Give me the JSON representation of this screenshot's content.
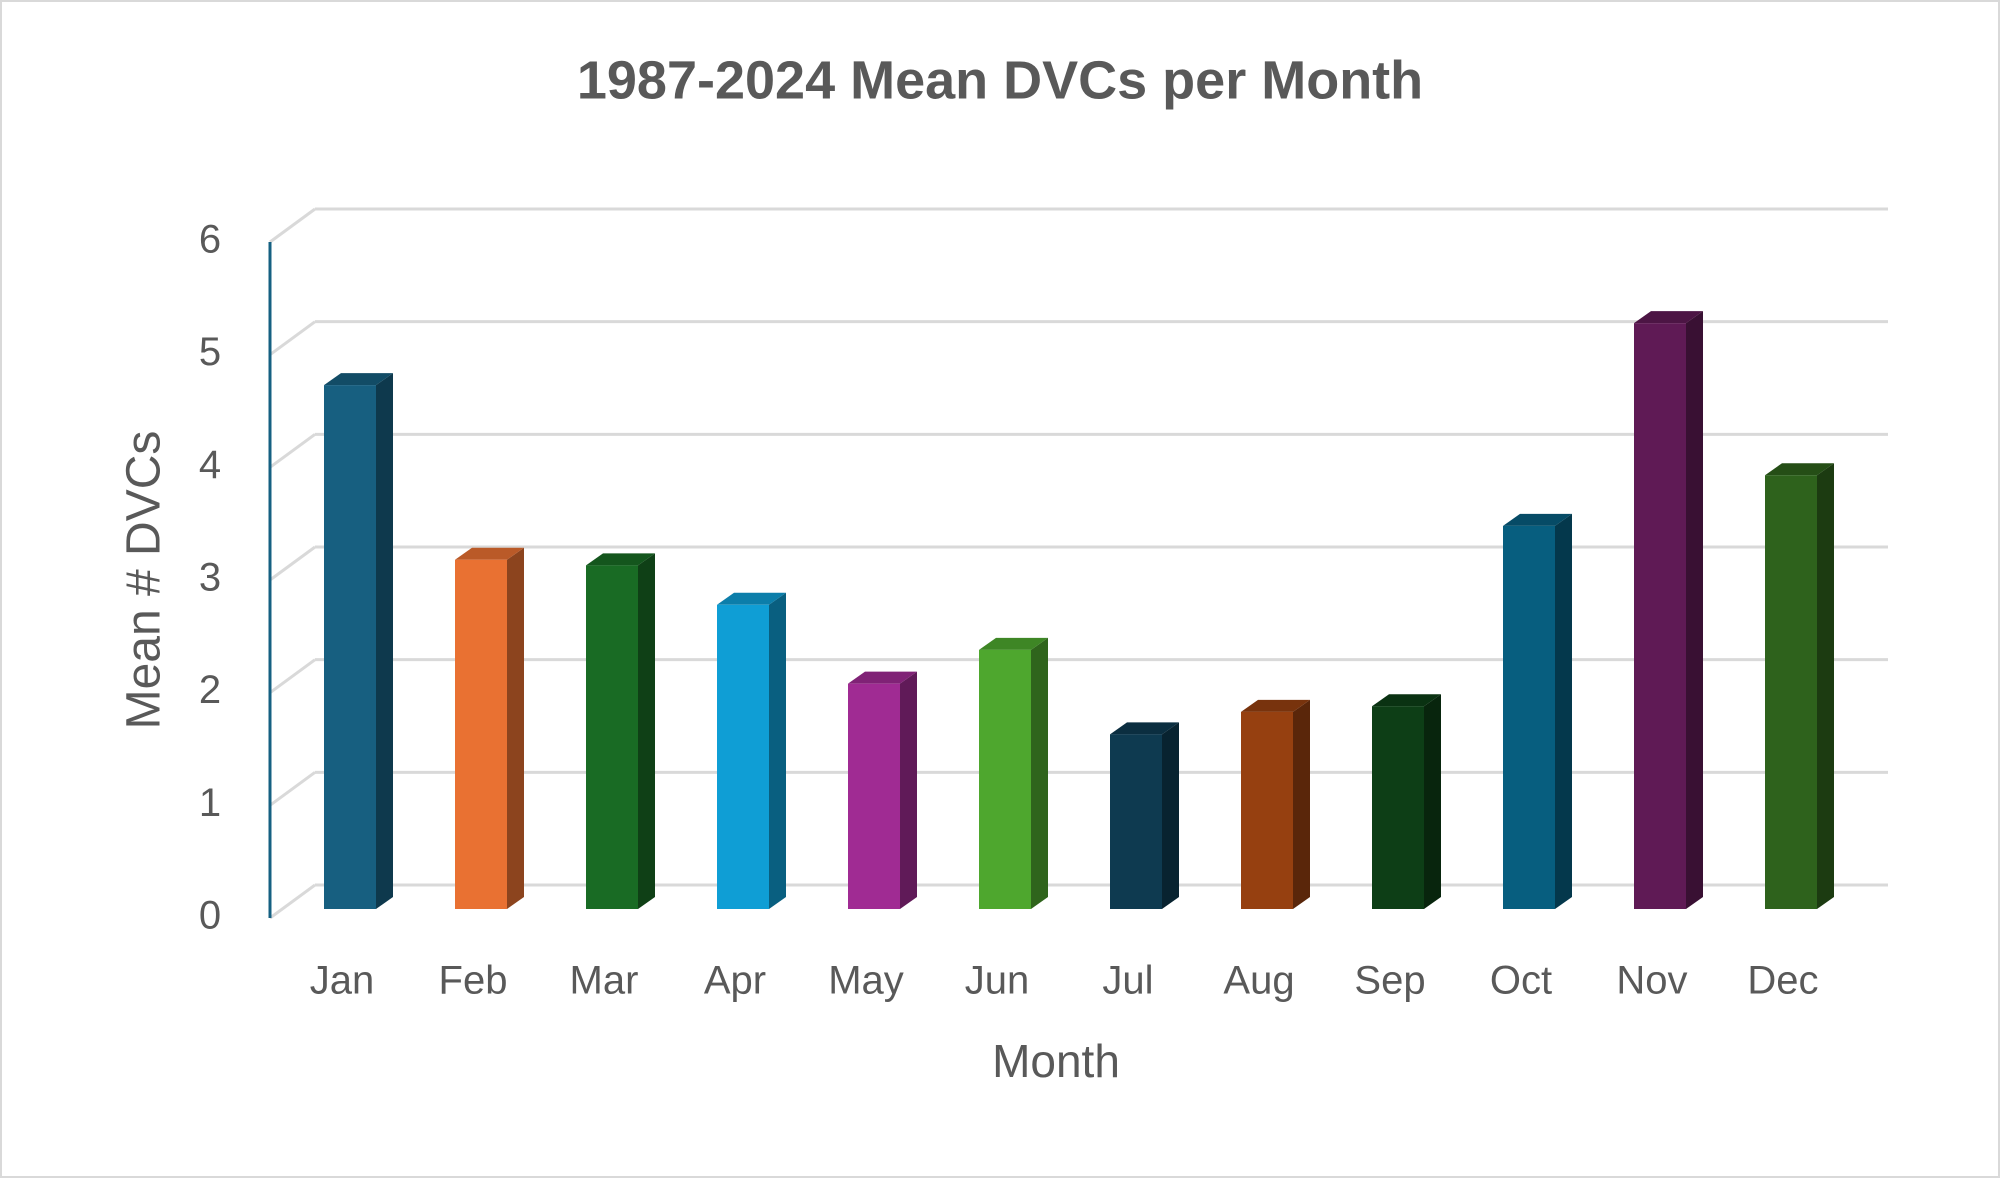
{
  "chart_data": {
    "type": "bar3d",
    "title": "1987-2024 Mean DVCs per Month",
    "x_label": "Month",
    "y_label": "Mean # DVCs",
    "categories": [
      "Jan",
      "Feb",
      "Mar",
      "Apr",
      "May",
      "Jun",
      "Jul",
      "Aug",
      "Sep",
      "Oct",
      "Nov",
      "Dec"
    ],
    "values": [
      4.65,
      3.1,
      3.05,
      2.7,
      2.0,
      2.3,
      1.55,
      1.75,
      1.8,
      3.4,
      5.2,
      3.85
    ],
    "colors": [
      "#175f80",
      "#e97132",
      "#196b24",
      "#0f9ed5",
      "#a02b93",
      "#4ea72e",
      "#0e3a50",
      "#964010",
      "#0d3e16",
      "#075e7f",
      "#5f1a55",
      "#2e621c"
    ],
    "ylim": [
      0,
      6
    ],
    "yticks": [
      0,
      1,
      2,
      3,
      4,
      5,
      6
    ],
    "grid": true
  }
}
